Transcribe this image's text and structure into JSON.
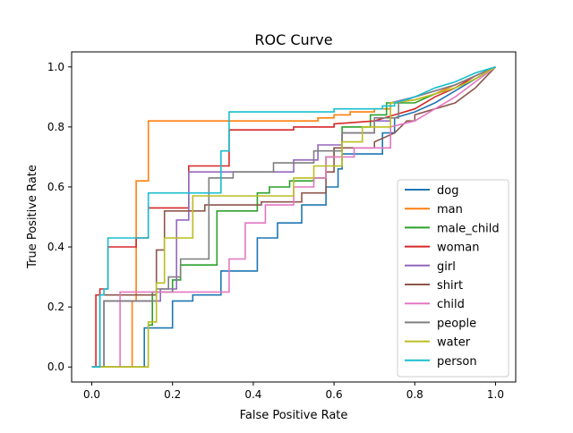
{
  "chart_data": {
    "type": "line",
    "title": "ROC Curve",
    "xlabel": "False Positive Rate",
    "ylabel": "True Positive Rate",
    "xlim": [
      -0.05,
      1.05
    ],
    "ylim": [
      -0.05,
      1.05
    ],
    "xticks": [
      "0.0",
      "0.2",
      "0.4",
      "0.6",
      "0.8",
      "1.0"
    ],
    "yticks": [
      "0.0",
      "0.2",
      "0.4",
      "0.6",
      "0.8",
      "1.0"
    ],
    "grid": false,
    "legend_position": "lower-right",
    "step": true,
    "series": [
      {
        "name": "dog",
        "color": "#1f77b4",
        "points": [
          [
            0,
            0
          ],
          [
            0.13,
            0
          ],
          [
            0.13,
            0.13
          ],
          [
            0.2,
            0.13
          ],
          [
            0.2,
            0.22
          ],
          [
            0.25,
            0.22
          ],
          [
            0.25,
            0.24
          ],
          [
            0.32,
            0.24
          ],
          [
            0.32,
            0.32
          ],
          [
            0.41,
            0.32
          ],
          [
            0.41,
            0.43
          ],
          [
            0.44,
            0.43
          ],
          [
            0.46,
            0.43
          ],
          [
            0.46,
            0.48
          ],
          [
            0.52,
            0.48
          ],
          [
            0.52,
            0.54
          ],
          [
            0.58,
            0.54
          ],
          [
            0.58,
            0.6
          ],
          [
            0.61,
            0.6
          ],
          [
            0.61,
            0.66
          ],
          [
            0.62,
            0.66
          ],
          [
            0.62,
            0.71
          ],
          [
            0.72,
            0.71
          ],
          [
            0.72,
            0.78
          ],
          [
            0.75,
            0.78
          ],
          [
            0.75,
            0.83
          ],
          [
            0.8,
            0.85
          ],
          [
            0.85,
            0.88
          ],
          [
            0.9,
            0.92
          ],
          [
            0.95,
            0.96
          ],
          [
            1,
            1
          ]
        ]
      },
      {
        "name": "man",
        "color": "#ff7f0e",
        "points": [
          [
            0,
            0
          ],
          [
            0.1,
            0
          ],
          [
            0.1,
            0.22
          ],
          [
            0.11,
            0.22
          ],
          [
            0.11,
            0.62
          ],
          [
            0.14,
            0.62
          ],
          [
            0.14,
            0.82
          ],
          [
            0.56,
            0.82
          ],
          [
            0.56,
            0.83
          ],
          [
            0.6,
            0.83
          ],
          [
            0.6,
            0.84
          ],
          [
            0.64,
            0.84
          ],
          [
            0.64,
            0.85
          ],
          [
            0.7,
            0.85
          ],
          [
            0.7,
            0.86
          ],
          [
            0.74,
            0.86
          ],
          [
            0.74,
            0.88
          ],
          [
            0.8,
            0.89
          ],
          [
            0.85,
            0.91
          ],
          [
            0.9,
            0.94
          ],
          [
            0.95,
            0.97
          ],
          [
            1,
            1
          ]
        ]
      },
      {
        "name": "male_child",
        "color": "#2ca02c",
        "points": [
          [
            0,
            0
          ],
          [
            0.14,
            0
          ],
          [
            0.14,
            0.14
          ],
          [
            0.15,
            0.14
          ],
          [
            0.15,
            0.25
          ],
          [
            0.17,
            0.25
          ],
          [
            0.2,
            0.25
          ],
          [
            0.2,
            0.29
          ],
          [
            0.22,
            0.29
          ],
          [
            0.22,
            0.34
          ],
          [
            0.31,
            0.34
          ],
          [
            0.31,
            0.52
          ],
          [
            0.41,
            0.52
          ],
          [
            0.41,
            0.58
          ],
          [
            0.44,
            0.58
          ],
          [
            0.44,
            0.6
          ],
          [
            0.49,
            0.6
          ],
          [
            0.49,
            0.62
          ],
          [
            0.55,
            0.62
          ],
          [
            0.55,
            0.63
          ],
          [
            0.58,
            0.63
          ],
          [
            0.58,
            0.7
          ],
          [
            0.6,
            0.7
          ],
          [
            0.6,
            0.73
          ],
          [
            0.62,
            0.73
          ],
          [
            0.62,
            0.8
          ],
          [
            0.69,
            0.8
          ],
          [
            0.69,
            0.84
          ],
          [
            0.73,
            0.84
          ],
          [
            0.73,
            0.88
          ],
          [
            0.8,
            0.88
          ],
          [
            0.85,
            0.91
          ],
          [
            0.9,
            0.93
          ],
          [
            0.95,
            0.96
          ],
          [
            1,
            1
          ]
        ]
      },
      {
        "name": "woman",
        "color": "#d62728",
        "points": [
          [
            0,
            0
          ],
          [
            0.01,
            0
          ],
          [
            0.01,
            0.24
          ],
          [
            0.02,
            0.24
          ],
          [
            0.02,
            0.26
          ],
          [
            0.04,
            0.26
          ],
          [
            0.04,
            0.4
          ],
          [
            0.11,
            0.4
          ],
          [
            0.11,
            0.43
          ],
          [
            0.14,
            0.43
          ],
          [
            0.14,
            0.53
          ],
          [
            0.24,
            0.53
          ],
          [
            0.24,
            0.67
          ],
          [
            0.34,
            0.67
          ],
          [
            0.34,
            0.79
          ],
          [
            0.5,
            0.79
          ],
          [
            0.5,
            0.8
          ],
          [
            0.6,
            0.8
          ],
          [
            0.6,
            0.81
          ],
          [
            0.7,
            0.82
          ],
          [
            0.75,
            0.84
          ],
          [
            0.8,
            0.86
          ],
          [
            0.85,
            0.9
          ],
          [
            0.9,
            0.93
          ],
          [
            0.95,
            0.97
          ],
          [
            1,
            1
          ]
        ]
      },
      {
        "name": "girl",
        "color": "#9467bd",
        "points": [
          [
            0,
            0
          ],
          [
            0.03,
            0
          ],
          [
            0.03,
            0.22
          ],
          [
            0.17,
            0.22
          ],
          [
            0.17,
            0.26
          ],
          [
            0.21,
            0.26
          ],
          [
            0.21,
            0.49
          ],
          [
            0.24,
            0.49
          ],
          [
            0.24,
            0.65
          ],
          [
            0.5,
            0.65
          ],
          [
            0.5,
            0.69
          ],
          [
            0.56,
            0.69
          ],
          [
            0.56,
            0.74
          ],
          [
            0.62,
            0.74
          ],
          [
            0.62,
            0.78
          ],
          [
            0.7,
            0.78
          ],
          [
            0.7,
            0.82
          ],
          [
            0.74,
            0.82
          ],
          [
            0.74,
            0.88
          ],
          [
            0.8,
            0.9
          ],
          [
            0.85,
            0.92
          ],
          [
            0.9,
            0.94
          ],
          [
            0.95,
            0.97
          ],
          [
            1,
            1
          ]
        ]
      },
      {
        "name": "shirt",
        "color": "#8c564b",
        "points": [
          [
            0,
            0
          ],
          [
            0.02,
            0
          ],
          [
            0.02,
            0.24
          ],
          [
            0.16,
            0.24
          ],
          [
            0.16,
            0.39
          ],
          [
            0.18,
            0.39
          ],
          [
            0.18,
            0.52
          ],
          [
            0.28,
            0.52
          ],
          [
            0.28,
            0.54
          ],
          [
            0.42,
            0.54
          ],
          [
            0.42,
            0.55
          ],
          [
            0.52,
            0.55
          ],
          [
            0.52,
            0.58
          ],
          [
            0.58,
            0.58
          ],
          [
            0.58,
            0.65
          ],
          [
            0.6,
            0.65
          ],
          [
            0.6,
            0.73
          ],
          [
            0.7,
            0.73
          ],
          [
            0.7,
            0.75
          ],
          [
            0.75,
            0.78
          ],
          [
            0.78,
            0.82
          ],
          [
            0.8,
            0.82
          ],
          [
            0.8,
            0.84
          ],
          [
            0.85,
            0.86
          ],
          [
            0.9,
            0.88
          ],
          [
            0.95,
            0.93
          ],
          [
            1,
            1
          ]
        ]
      },
      {
        "name": "child",
        "color": "#e377c2",
        "points": [
          [
            0,
            0
          ],
          [
            0.07,
            0
          ],
          [
            0.07,
            0.25
          ],
          [
            0.34,
            0.25
          ],
          [
            0.34,
            0.36
          ],
          [
            0.38,
            0.36
          ],
          [
            0.38,
            0.48
          ],
          [
            0.43,
            0.48
          ],
          [
            0.43,
            0.54
          ],
          [
            0.5,
            0.54
          ],
          [
            0.5,
            0.6
          ],
          [
            0.55,
            0.6
          ],
          [
            0.55,
            0.63
          ],
          [
            0.58,
            0.63
          ],
          [
            0.58,
            0.7
          ],
          [
            0.65,
            0.7
          ],
          [
            0.65,
            0.73
          ],
          [
            0.74,
            0.73
          ],
          [
            0.74,
            0.8
          ],
          [
            0.8,
            0.82
          ],
          [
            0.85,
            0.86
          ],
          [
            0.9,
            0.9
          ],
          [
            0.95,
            0.95
          ],
          [
            1,
            1
          ]
        ]
      },
      {
        "name": "people",
        "color": "#7f7f7f",
        "points": [
          [
            0,
            0
          ],
          [
            0.03,
            0
          ],
          [
            0.03,
            0.22
          ],
          [
            0.16,
            0.22
          ],
          [
            0.16,
            0.26
          ],
          [
            0.19,
            0.26
          ],
          [
            0.19,
            0.3
          ],
          [
            0.22,
            0.3
          ],
          [
            0.22,
            0.36
          ],
          [
            0.29,
            0.36
          ],
          [
            0.29,
            0.63
          ],
          [
            0.35,
            0.63
          ],
          [
            0.35,
            0.65
          ],
          [
            0.45,
            0.65
          ],
          [
            0.45,
            0.68
          ],
          [
            0.55,
            0.68
          ],
          [
            0.55,
            0.72
          ],
          [
            0.62,
            0.72
          ],
          [
            0.62,
            0.78
          ],
          [
            0.7,
            0.78
          ],
          [
            0.7,
            0.83
          ],
          [
            0.76,
            0.83
          ],
          [
            0.76,
            0.88
          ],
          [
            0.8,
            0.9
          ],
          [
            0.85,
            0.92
          ],
          [
            0.9,
            0.94
          ],
          [
            0.95,
            0.97
          ],
          [
            1,
            1
          ]
        ]
      },
      {
        "name": "water",
        "color": "#bcbd22",
        "points": [
          [
            0,
            0
          ],
          [
            0.14,
            0
          ],
          [
            0.14,
            0.15
          ],
          [
            0.16,
            0.15
          ],
          [
            0.16,
            0.28
          ],
          [
            0.18,
            0.28
          ],
          [
            0.18,
            0.43
          ],
          [
            0.25,
            0.43
          ],
          [
            0.25,
            0.57
          ],
          [
            0.39,
            0.57
          ],
          [
            0.39,
            0.57
          ],
          [
            0.5,
            0.57
          ],
          [
            0.5,
            0.63
          ],
          [
            0.55,
            0.63
          ],
          [
            0.55,
            0.67
          ],
          [
            0.62,
            0.67
          ],
          [
            0.62,
            0.75
          ],
          [
            0.67,
            0.75
          ],
          [
            0.67,
            0.8
          ],
          [
            0.74,
            0.8
          ],
          [
            0.74,
            0.88
          ],
          [
            0.8,
            0.89
          ],
          [
            0.85,
            0.91
          ],
          [
            0.9,
            0.93
          ],
          [
            0.95,
            0.96
          ],
          [
            1,
            1
          ]
        ]
      },
      {
        "name": "person",
        "color": "#17becf",
        "points": [
          [
            0,
            0
          ],
          [
            0.02,
            0
          ],
          [
            0.02,
            0.24
          ],
          [
            0.03,
            0.24
          ],
          [
            0.03,
            0.26
          ],
          [
            0.04,
            0.26
          ],
          [
            0.04,
            0.43
          ],
          [
            0.14,
            0.43
          ],
          [
            0.14,
            0.58
          ],
          [
            0.32,
            0.58
          ],
          [
            0.32,
            0.72
          ],
          [
            0.34,
            0.72
          ],
          [
            0.34,
            0.85
          ],
          [
            0.6,
            0.85
          ],
          [
            0.6,
            0.86
          ],
          [
            0.72,
            0.86
          ],
          [
            0.72,
            0.87
          ],
          [
            0.75,
            0.87
          ],
          [
            0.75,
            0.88
          ],
          [
            0.8,
            0.9
          ],
          [
            0.85,
            0.93
          ],
          [
            0.9,
            0.95
          ],
          [
            0.95,
            0.98
          ],
          [
            1,
            1
          ]
        ]
      }
    ]
  }
}
